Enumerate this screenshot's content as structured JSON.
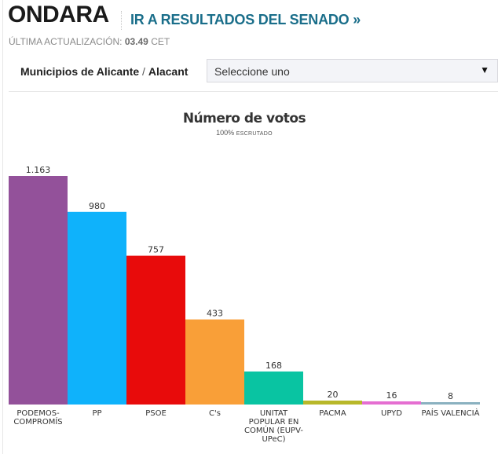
{
  "header": {
    "title": "ONDARA",
    "senado_link": "IR A RESULTADOS DEL SENADO »",
    "updated_label": "ÚLTIMA ACTUALIZACIÓN:",
    "updated_time": "03.49",
    "updated_tz": "CET"
  },
  "filter": {
    "label_main": "Municipios de Alicante",
    "label_sep": " / ",
    "label_alt": "Alacant",
    "select_value": "Seleccione uno",
    "arrow_icon": "▼"
  },
  "chart_data": {
    "type": "bar",
    "title": "Número de votos",
    "subtitle_pct": "100%",
    "subtitle_text": "ESCRUTADO",
    "xlabel": "",
    "ylabel": "",
    "ylim": [
      0,
      1163
    ],
    "grid": false,
    "legend": "none",
    "categories": [
      [
        "PODEMOS-",
        "COMPROMÍS"
      ],
      [
        "PP"
      ],
      [
        "PSOE"
      ],
      [
        "C's"
      ],
      [
        "UNITAT",
        "POPULAR EN",
        "COMÚN (EUPV-",
        "UPeC)"
      ],
      [
        "PACMA"
      ],
      [
        "UPYD"
      ],
      [
        "PAÍS VALENCIÀ"
      ]
    ],
    "values": [
      1163,
      980,
      757,
      433,
      168,
      20,
      16,
      8
    ],
    "value_labels": [
      "1.163",
      "980",
      "757",
      "433",
      "168",
      "20",
      "16",
      "8"
    ],
    "colors": [
      "#93519a",
      "#0fb2fb",
      "#e80b0b",
      "#f99f38",
      "#09c4a2",
      "#b8b82a",
      "#e56ed1",
      "#8ab1c0"
    ]
  }
}
